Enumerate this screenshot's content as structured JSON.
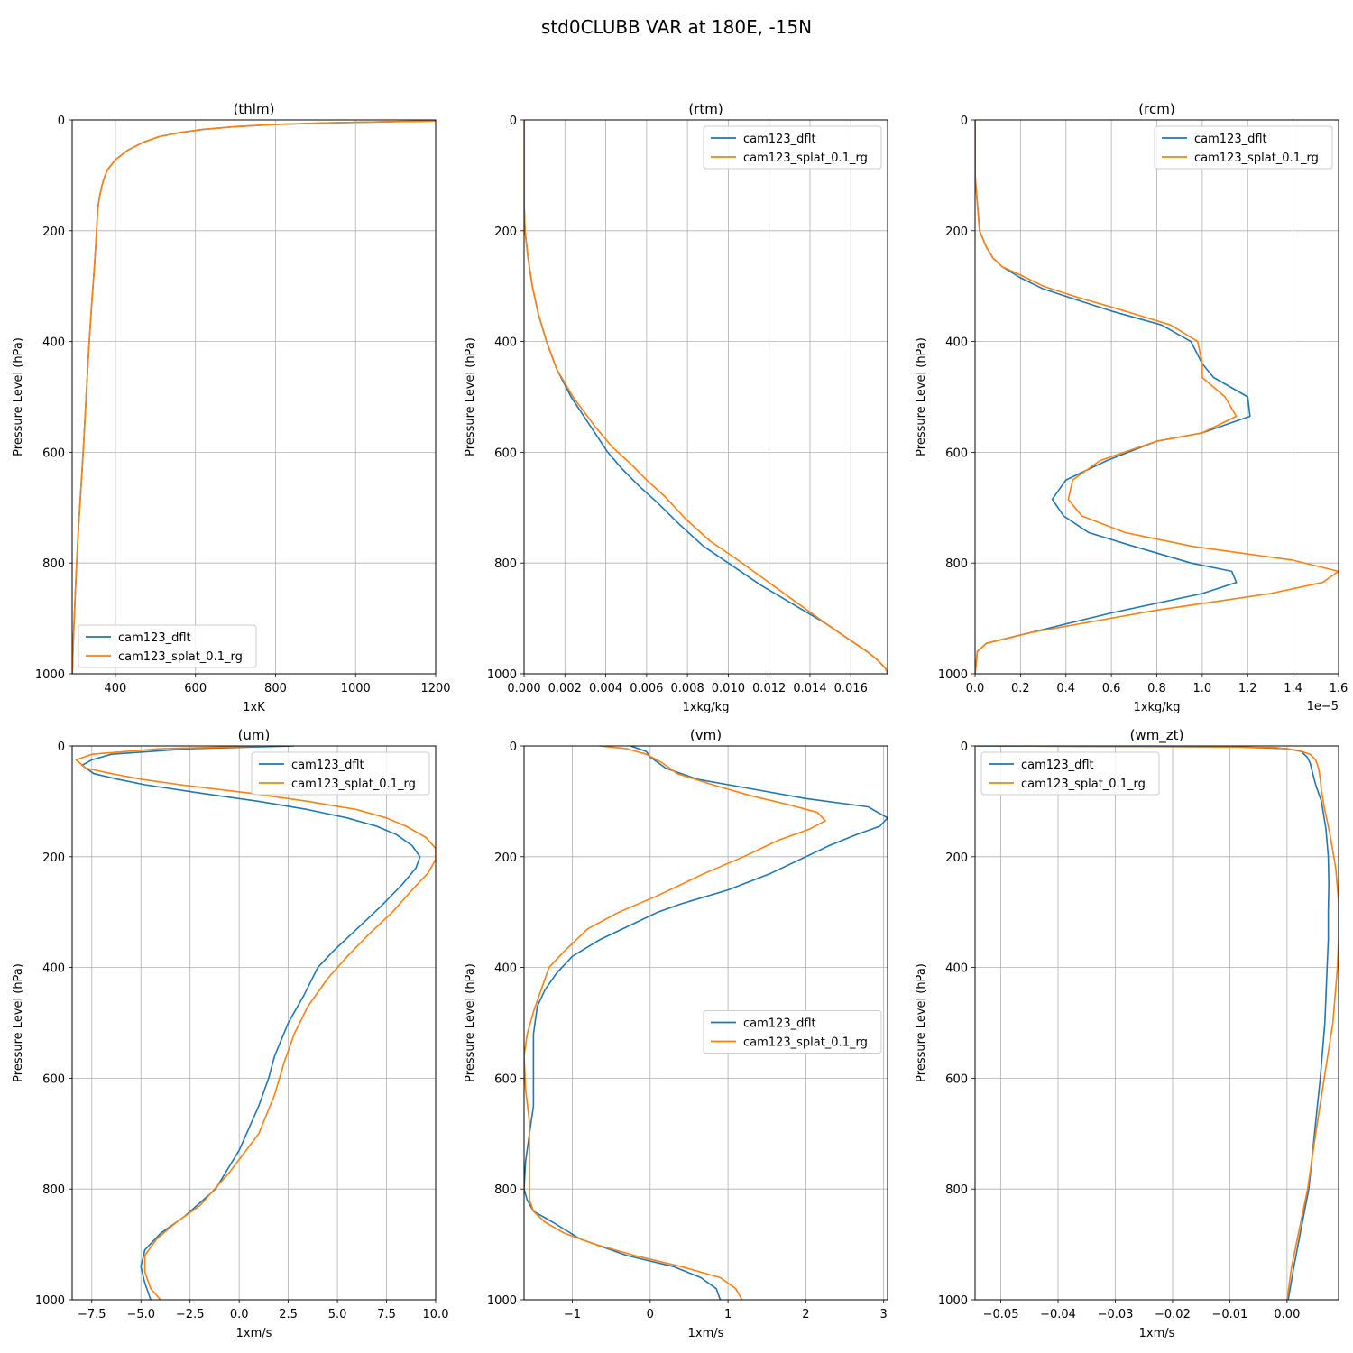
{
  "figure": {
    "title": "std0CLUBB VAR at 180E, -15N"
  },
  "colors": {
    "cam123_dflt": "#1f77b4",
    "cam123_splat_0.1_rg": "#ff7f0e",
    "grid": "#b0b0b0"
  },
  "chart_data": [
    {
      "type": "line",
      "title": "(thlm)",
      "xlabel": "1xK",
      "ylabel": "Pressure Level (hPa)",
      "xlim": [
        292,
        1200
      ],
      "ylim": [
        1000,
        0
      ],
      "y_inverted": true,
      "grid": true,
      "xticks": [
        400,
        600,
        800,
        1000,
        1200
      ],
      "xtick_labels": [
        "400",
        "600",
        "800",
        "1000",
        "1200"
      ],
      "yticks": [
        0,
        200,
        400,
        600,
        800,
        1000
      ],
      "ytick_labels": [
        "0",
        "200",
        "400",
        "600",
        "800",
        "1000"
      ],
      "x_offset_label": "",
      "legend": "lower-left",
      "series": [
        {
          "name": "cam123_dflt",
          "x": [
            1200,
            1100,
            950,
            800,
            700,
            620,
            560,
            510,
            470,
            430,
            400,
            380,
            372,
            366,
            360,
            356,
            353,
            348,
            340,
            333,
            327,
            321,
            316,
            311,
            306,
            302,
            299,
            296,
            294,
            293,
            292
          ],
          "y": [
            2,
            3,
            5,
            8,
            12,
            17,
            23,
            30,
            40,
            55,
            72,
            90,
            105,
            120,
            140,
            160,
            200,
            260,
            340,
            420,
            500,
            580,
            640,
            700,
            760,
            820,
            870,
            920,
            960,
            990,
            1000
          ]
        },
        {
          "name": "cam123_splat_0.1_rg",
          "x": [
            1200,
            1100,
            950,
            800,
            700,
            620,
            560,
            510,
            470,
            430,
            400,
            380,
            372,
            366,
            360,
            356,
            353,
            348,
            340,
            333,
            327,
            321,
            316,
            311,
            306,
            302,
            299,
            296,
            294,
            293,
            292
          ],
          "y": [
            2,
            3,
            5,
            8,
            12,
            17,
            23,
            30,
            40,
            55,
            72,
            90,
            105,
            120,
            140,
            160,
            200,
            260,
            340,
            420,
            500,
            580,
            640,
            700,
            760,
            820,
            870,
            920,
            960,
            990,
            1000
          ]
        }
      ]
    },
    {
      "type": "line",
      "title": "(rtm)",
      "xlabel": "1xkg/kg",
      "ylabel": "Pressure Level (hPa)",
      "xlim": [
        0,
        0.0178
      ],
      "ylim": [
        1000,
        0
      ],
      "y_inverted": true,
      "grid": true,
      "xticks": [
        0,
        0.002,
        0.004,
        0.006,
        0.008,
        0.01,
        0.012,
        0.014,
        0.016
      ],
      "xtick_labels": [
        "0.000",
        "0.002",
        "0.004",
        "0.006",
        "0.008",
        "0.010",
        "0.012",
        "0.014",
        "0.016"
      ],
      "yticks": [
        0,
        200,
        400,
        600,
        800,
        1000
      ],
      "ytick_labels": [
        "0",
        "200",
        "400",
        "600",
        "800",
        "1000"
      ],
      "x_offset_label": "",
      "legend": "upper-right",
      "series": [
        {
          "name": "cam123_dflt",
          "x": [
            0,
            0,
            5e-05,
            0.0002,
            0.0004,
            0.0007,
            0.0011,
            0.0016,
            0.0023,
            0.0032,
            0.0041,
            0.0048,
            0.0056,
            0.0065,
            0.0076,
            0.0088,
            0.01,
            0.0116,
            0.0132,
            0.0148,
            0.016,
            0.0168,
            0.0173,
            0.0177,
            0.0178
          ],
          "y": [
            0,
            150,
            200,
            250,
            300,
            350,
            400,
            450,
            500,
            550,
            600,
            630,
            660,
            690,
            730,
            770,
            800,
            840,
            875,
            910,
            940,
            960,
            975,
            990,
            1000
          ]
        },
        {
          "name": "cam123_splat_0.1_rg",
          "x": [
            0,
            0,
            5e-05,
            0.0002,
            0.0004,
            0.0007,
            0.0011,
            0.0016,
            0.0024,
            0.0034,
            0.0043,
            0.0052,
            0.006,
            0.0069,
            0.0079,
            0.0091,
            0.0103,
            0.0118,
            0.0133,
            0.0148,
            0.016,
            0.0168,
            0.0173,
            0.0177,
            0.0178
          ],
          "y": [
            0,
            150,
            200,
            250,
            300,
            350,
            400,
            450,
            500,
            550,
            590,
            620,
            650,
            680,
            720,
            760,
            790,
            830,
            870,
            910,
            940,
            960,
            975,
            990,
            1000
          ]
        }
      ]
    },
    {
      "type": "line",
      "title": "(rcm)",
      "xlabel": "1xkg/kg",
      "ylabel": "Pressure Level (hPa)",
      "xlim": [
        0,
        1.6e-05
      ],
      "ylim": [
        1000,
        0
      ],
      "y_inverted": true,
      "grid": true,
      "xticks": [
        0,
        2e-06,
        4e-06,
        6e-06,
        8e-06,
        1e-05,
        1.2e-05,
        1.4e-05,
        1.6e-05
      ],
      "xtick_labels": [
        "0.0",
        "0.2",
        "0.4",
        "0.6",
        "0.8",
        "1.0",
        "1.2",
        "1.4",
        "1.6"
      ],
      "yticks": [
        0,
        200,
        400,
        600,
        800,
        1000
      ],
      "ytick_labels": [
        "0",
        "200",
        "400",
        "600",
        "800",
        "1000"
      ],
      "x_offset_label": "1e−5",
      "legend": "upper-right",
      "series": [
        {
          "name": "cam123_dflt",
          "x": [
            0,
            0,
            2e-07,
            5e-07,
            8e-07,
            1.2e-06,
            2e-06,
            3e-06,
            4.5e-06,
            6e-06,
            8.2e-06,
            9.5e-06,
            1e-05,
            1.05e-05,
            1.2e-05,
            1.21e-05,
            1e-05,
            8e-06,
            5.8e-06,
            4e-06,
            3.4e-06,
            3.9e-06,
            5e-06,
            7e-06,
            9.5e-06,
            1.13e-05,
            1.15e-05,
            1e-05,
            6e-06,
            2e-06,
            5e-07,
            1e-07,
            0
          ],
          "y": [
            0,
            100,
            200,
            230,
            250,
            265,
            285,
            305,
            325,
            345,
            370,
            400,
            440,
            465,
            500,
            535,
            565,
            580,
            615,
            650,
            685,
            715,
            745,
            770,
            800,
            815,
            835,
            855,
            890,
            930,
            945,
            960,
            1000
          ]
        },
        {
          "name": "cam123_splat_0.1_rg",
          "x": [
            0,
            0,
            2e-07,
            5e-07,
            8e-07,
            1.2e-06,
            2e-06,
            3e-06,
            4.5e-06,
            6.2e-06,
            8.6e-06,
            9.8e-06,
            1e-05,
            1e-05,
            1.1e-05,
            1.15e-05,
            1e-05,
            8e-06,
            5.5e-06,
            4.3e-06,
            4.1e-06,
            4.7e-06,
            6.6e-06,
            9.6e-06,
            1.4e-05,
            1.6e-05,
            1.53e-05,
            1.3e-05,
            8e-06,
            2.5e-06,
            5e-07,
            1e-07,
            0
          ],
          "y": [
            0,
            100,
            200,
            230,
            250,
            265,
            280,
            300,
            320,
            340,
            370,
            400,
            440,
            465,
            500,
            535,
            565,
            580,
            615,
            650,
            685,
            715,
            745,
            770,
            795,
            815,
            835,
            855,
            885,
            925,
            945,
            960,
            1000
          ]
        }
      ]
    },
    {
      "type": "line",
      "title": "(um)",
      "xlabel": "1xm/s",
      "ylabel": "Pressure Level (hPa)",
      "xlim": [
        -8.5,
        10
      ],
      "ylim": [
        1000,
        0
      ],
      "y_inverted": true,
      "grid": true,
      "xticks": [
        -7.5,
        -5,
        -2.5,
        0,
        2.5,
        5,
        7.5,
        10
      ],
      "xtick_labels": [
        "−7.5",
        "−5.0",
        "−2.5",
        "0.0",
        "2.5",
        "5.0",
        "7.5",
        "10.0"
      ],
      "yticks": [
        0,
        200,
        400,
        600,
        800,
        1000
      ],
      "ytick_labels": [
        "0",
        "200",
        "400",
        "600",
        "800",
        "1000"
      ],
      "x_offset_label": "",
      "legend": "upper-right",
      "series": [
        {
          "name": "cam123_dflt",
          "x": [
            2.8,
            -2.5,
            -6.5,
            -7.5,
            -8.0,
            -7.4,
            -6.2,
            -4.8,
            -2.0,
            1.0,
            3.5,
            5.5,
            7.0,
            8.0,
            8.8,
            9.2,
            9.0,
            8.3,
            7.2,
            6.0,
            4.8,
            4.0,
            3.3,
            2.5,
            1.8,
            1.5,
            1.0,
            0.0,
            -1.2,
            -2.8,
            -4.0,
            -4.8,
            -5.0,
            -4.8,
            -4.5
          ],
          "y": [
            0,
            5,
            15,
            25,
            35,
            50,
            60,
            70,
            85,
            100,
            115,
            130,
            145,
            160,
            180,
            200,
            220,
            250,
            290,
            330,
            370,
            400,
            450,
            500,
            560,
            600,
            650,
            730,
            800,
            850,
            880,
            910,
            940,
            970,
            1000
          ]
        },
        {
          "name": "cam123_splat_0.1_rg",
          "x": [
            1.5,
            -4.0,
            -7.5,
            -8.3,
            -7.8,
            -6.5,
            -5.0,
            -3.0,
            0.5,
            3.5,
            6.0,
            7.5,
            8.5,
            9.5,
            10.0,
            10.0,
            9.6,
            8.8,
            7.8,
            6.6,
            5.5,
            4.5,
            3.5,
            2.8,
            2.3,
            1.8,
            1.0,
            -0.5,
            -2.0,
            -3.2,
            -4.2,
            -4.8,
            -4.8,
            -4.5,
            -4.0
          ],
          "y": [
            0,
            5,
            15,
            25,
            40,
            50,
            60,
            70,
            85,
            100,
            115,
            130,
            145,
            165,
            185,
            205,
            230,
            260,
            300,
            340,
            380,
            420,
            470,
            520,
            570,
            630,
            700,
            770,
            830,
            860,
            890,
            920,
            950,
            980,
            1000
          ]
        }
      ]
    },
    {
      "type": "line",
      "title": "(vm)",
      "xlabel": "1xm/s",
      "ylabel": "Pressure Level (hPa)",
      "xlim": [
        -1.62,
        3.05
      ],
      "ylim": [
        1000,
        0
      ],
      "y_inverted": true,
      "grid": true,
      "xticks": [
        -1,
        0,
        1,
        2,
        3
      ],
      "xtick_labels": [
        "−1",
        "0",
        "1",
        "2",
        "3"
      ],
      "yticks": [
        0,
        200,
        400,
        600,
        800,
        1000
      ],
      "ytick_labels": [
        "0",
        "200",
        "400",
        "600",
        "800",
        "1000"
      ],
      "x_offset_label": "",
      "legend": "center-right",
      "series": [
        {
          "name": "cam123_dflt",
          "x": [
            -0.25,
            -0.05,
            0.0,
            0.2,
            0.6,
            1.2,
            2.0,
            2.8,
            3.05,
            2.95,
            2.65,
            2.3,
            2.0,
            1.55,
            1.0,
            0.4,
            0.1,
            -0.2,
            -0.65,
            -1.0,
            -1.2,
            -1.35,
            -1.45,
            -1.5,
            -1.5,
            -1.5,
            -1.55,
            -1.6,
            -1.62,
            -1.58,
            -1.5,
            -1.25,
            -0.9,
            -0.3,
            0.3,
            0.65,
            0.85,
            0.9
          ],
          "y": [
            0,
            10,
            20,
            40,
            60,
            75,
            95,
            110,
            130,
            145,
            160,
            180,
            200,
            230,
            260,
            285,
            300,
            320,
            350,
            380,
            410,
            440,
            470,
            520,
            580,
            650,
            700,
            750,
            800,
            820,
            840,
            860,
            890,
            920,
            940,
            960,
            980,
            1000
          ]
        },
        {
          "name": "cam123_splat_0.1_rg",
          "x": [
            -0.65,
            -0.3,
            -0.05,
            0.15,
            0.35,
            0.8,
            1.3,
            1.75,
            2.15,
            2.25,
            2.05,
            1.65,
            1.2,
            0.7,
            0.1,
            -0.4,
            -0.8,
            -1.1,
            -1.3,
            -1.4,
            -1.5,
            -1.58,
            -1.62,
            -1.6,
            -1.55,
            -1.55,
            -1.55,
            -1.55,
            -1.5,
            -1.35,
            -1.1,
            -0.7,
            -0.2,
            0.4,
            0.9,
            1.1,
            1.18
          ],
          "y": [
            0,
            5,
            15,
            30,
            50,
            70,
            90,
            105,
            120,
            135,
            150,
            170,
            200,
            230,
            270,
            300,
            330,
            370,
            400,
            440,
            480,
            520,
            560,
            620,
            680,
            740,
            790,
            820,
            840,
            860,
            880,
            900,
            920,
            940,
            960,
            980,
            1000
          ]
        }
      ]
    },
    {
      "type": "line",
      "title": "(wm_zt)",
      "xlabel": "1xm/s",
      "ylabel": "Pressure Level (hPa)",
      "xlim": [
        -0.0545,
        0.009
      ],
      "ylim": [
        1000,
        0
      ],
      "y_inverted": true,
      "grid": true,
      "xticks": [
        -0.05,
        -0.04,
        -0.03,
        -0.02,
        -0.01,
        0.0
      ],
      "xtick_labels": [
        "−0.05",
        "−0.04",
        "−0.03",
        "−0.02",
        "−0.01",
        "0.00"
      ],
      "yticks": [
        0,
        200,
        400,
        600,
        800,
        1000
      ],
      "ytick_labels": [
        "0",
        "200",
        "400",
        "600",
        "800",
        "1000"
      ],
      "x_offset_label": "",
      "legend": "upper-left",
      "series": [
        {
          "name": "cam123_dflt",
          "x": [
            -0.054,
            -0.03,
            -0.008,
            0.0,
            0.0025,
            0.0035,
            0.004,
            0.0045,
            0.005,
            0.006,
            0.0068,
            0.0072,
            0.0073,
            0.0072,
            0.0072,
            0.007,
            0.0066,
            0.0058,
            0.0048,
            0.0038,
            0.0025,
            0.0012,
            0.0002
          ],
          "y": [
            0,
            1,
            2,
            5,
            10,
            20,
            30,
            50,
            70,
            100,
            150,
            200,
            250,
            300,
            350,
            400,
            500,
            600,
            700,
            800,
            870,
            940,
            1000
          ]
        },
        {
          "name": "cam123_splat_0.1_rg",
          "x": [
            -0.055,
            -0.02,
            -0.002,
            0.002,
            0.004,
            0.005,
            0.0055,
            0.0058,
            0.006,
            0.0065,
            0.0075,
            0.0085,
            0.009,
            0.009,
            0.0088,
            0.008,
            0.0065,
            0.005,
            0.0036,
            0.0022,
            0.0008,
            0.0
          ],
          "y": [
            0,
            1,
            3,
            8,
            15,
            25,
            40,
            60,
            80,
            110,
            160,
            220,
            280,
            350,
            400,
            500,
            600,
            700,
            800,
            870,
            940,
            1000
          ]
        }
      ]
    }
  ]
}
